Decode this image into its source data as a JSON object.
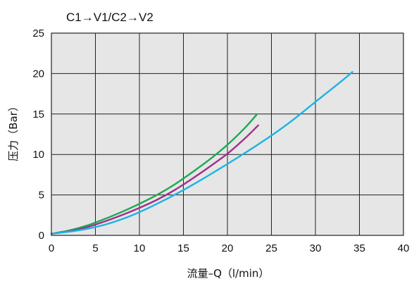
{
  "chart_data": {
    "type": "line",
    "title": "C1→V1/C2→V2",
    "xlabel": "流量–Q（l/min）",
    "ylabel": "压力（Bar）",
    "xlim": [
      0,
      40
    ],
    "ylim": [
      0,
      25
    ],
    "xticks": [
      0,
      5,
      10,
      15,
      20,
      25,
      30,
      35,
      40
    ],
    "yticks": [
      0,
      5,
      10,
      15,
      20,
      25
    ],
    "grid": true,
    "plot_background": "#e6e6e6",
    "series": [
      {
        "color": "#1aaa55",
        "x": [
          0,
          2,
          4,
          6,
          8,
          10,
          12,
          14,
          16,
          18,
          20,
          22,
          23.3
        ],
        "y": [
          0.2,
          0.6,
          1.2,
          2.0,
          2.9,
          3.9,
          5.0,
          6.3,
          7.8,
          9.4,
          11.2,
          13.3,
          14.9
        ]
      },
      {
        "color": "#a0308a",
        "x": [
          0,
          2,
          4,
          6,
          8,
          10,
          12,
          14,
          16,
          18,
          20,
          22,
          23.5
        ],
        "y": [
          0.2,
          0.5,
          1.0,
          1.7,
          2.5,
          3.4,
          4.4,
          5.6,
          7.0,
          8.5,
          10.1,
          12.0,
          13.6
        ]
      },
      {
        "color": "#1ab4e6",
        "x": [
          0,
          3,
          6,
          9,
          12,
          15,
          18,
          21,
          24,
          27,
          30,
          33,
          34.2
        ],
        "y": [
          0.2,
          0.6,
          1.3,
          2.4,
          3.9,
          5.6,
          7.5,
          9.5,
          11.6,
          13.9,
          16.5,
          19.1,
          20.2
        ]
      }
    ]
  }
}
